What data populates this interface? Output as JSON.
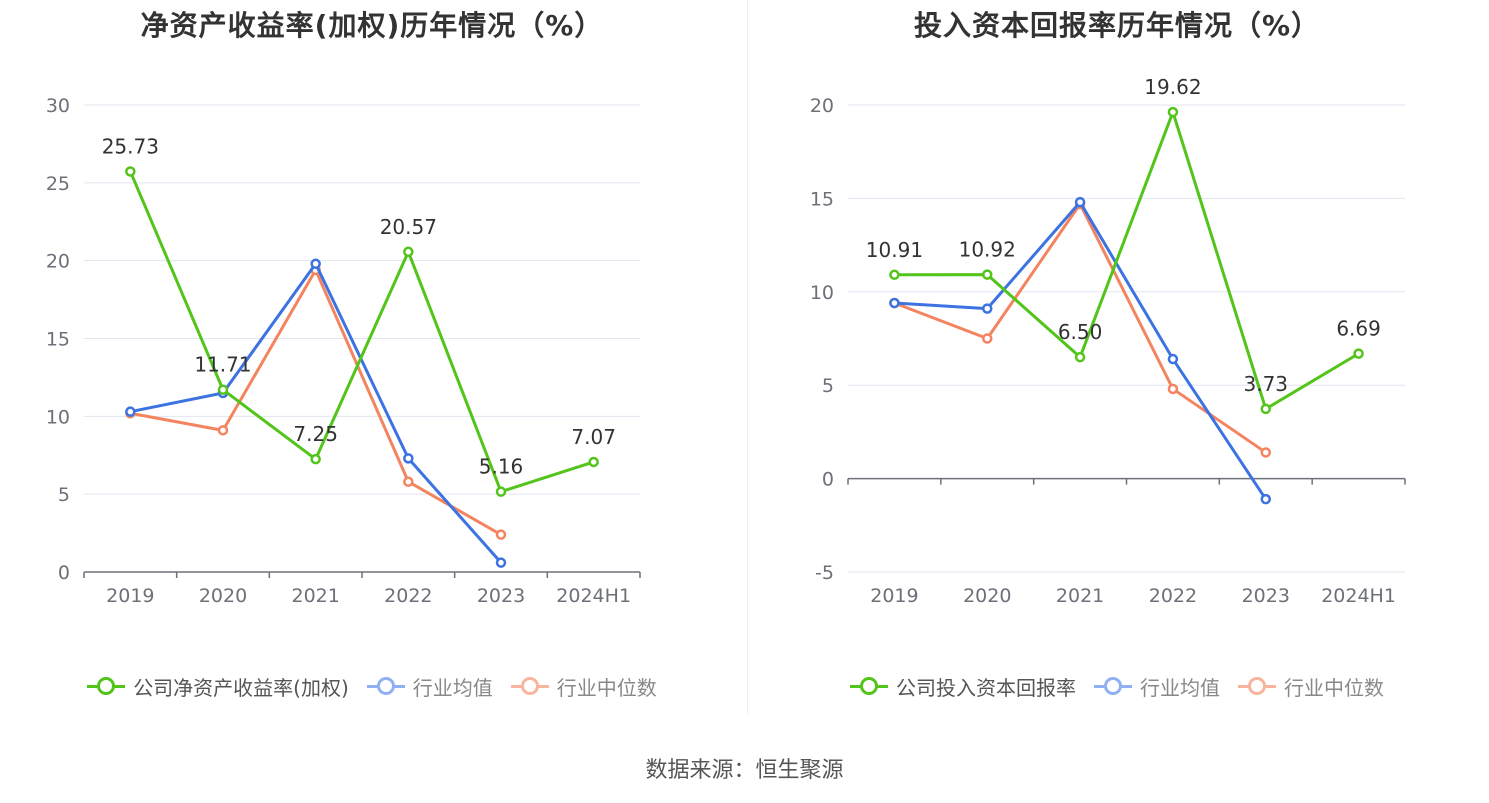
{
  "source": "数据来源：恒生聚源",
  "colors": {
    "company": "#52c41a",
    "avg": "#3c73e1",
    "median": "#f4845f",
    "avg_legend": "#8fb0f2",
    "median_legend": "#f8b49c"
  },
  "chart_data": [
    {
      "type": "line",
      "title": "净资产收益率(加权)历年情况（%）",
      "x": [
        "2019",
        "2020",
        "2021",
        "2022",
        "2023",
        "2024H1"
      ],
      "ylim": [
        0,
        30
      ],
      "yticks": [
        0,
        5,
        10,
        15,
        20,
        25,
        30
      ],
      "grid": true,
      "legend_position": "bottom",
      "series": [
        {
          "name": "公司净资产收益率(加权)",
          "color": "#52c41a",
          "values": [
            25.73,
            11.71,
            7.25,
            20.57,
            5.16,
            7.07
          ],
          "labels": [
            "25.73",
            "11.71",
            "7.25",
            "20.57",
            "5.16",
            "7.07"
          ]
        },
        {
          "name": "行业均值",
          "color": "#3c73e1",
          "values": [
            10.3,
            11.5,
            19.8,
            7.3,
            0.6,
            null
          ]
        },
        {
          "name": "行业中位数",
          "color": "#f4845f",
          "values": [
            10.2,
            9.1,
            19.4,
            5.8,
            2.4,
            null
          ]
        }
      ]
    },
    {
      "type": "line",
      "title": "投入资本回报率历年情况（%）",
      "x": [
        "2019",
        "2020",
        "2021",
        "2022",
        "2023",
        "2024H1"
      ],
      "ylim": [
        -5,
        20
      ],
      "yticks": [
        -5,
        0,
        5,
        10,
        15,
        20
      ],
      "grid": true,
      "legend_position": "bottom",
      "series": [
        {
          "name": "公司投入资本回报率",
          "color": "#52c41a",
          "values": [
            10.91,
            10.92,
            6.5,
            19.62,
            3.73,
            6.69
          ],
          "labels": [
            "10.91",
            "10.92",
            "6.50",
            "19.62",
            "3.73",
            "6.69"
          ]
        },
        {
          "name": "行业均值",
          "color": "#3c73e1",
          "values": [
            9.4,
            9.1,
            14.8,
            6.4,
            -1.1,
            null
          ]
        },
        {
          "name": "行业中位数",
          "color": "#f4845f",
          "values": [
            9.4,
            7.5,
            14.7,
            4.8,
            1.4,
            null
          ]
        }
      ]
    }
  ]
}
